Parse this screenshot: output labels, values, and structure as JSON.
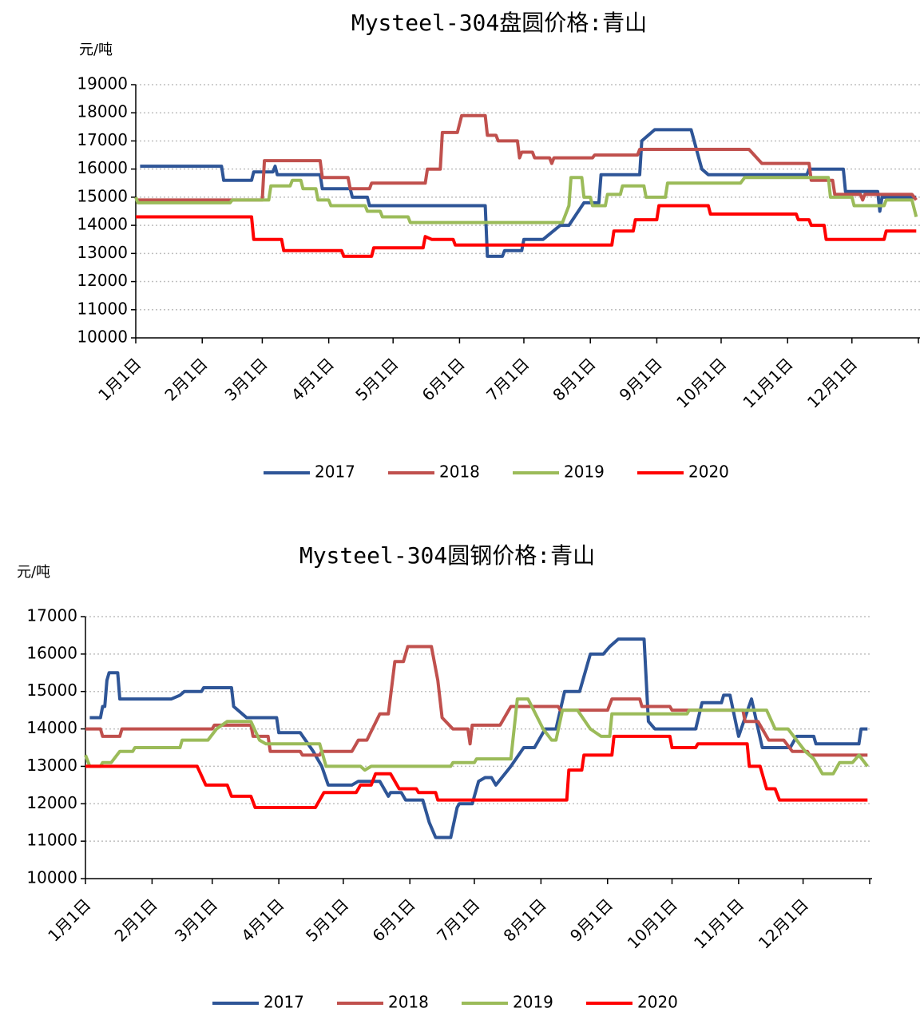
{
  "chart_data": [
    {
      "type": "line",
      "title": "Mysteel-304盘圆价格:青山",
      "y_label": "元/吨",
      "grid": true,
      "legend": "bottom",
      "xlim": [
        "01-01",
        "12-31"
      ],
      "xticks": [
        {
          "value": "01-01",
          "label": "1月1日"
        },
        {
          "value": "02-01",
          "label": "2月1日"
        },
        {
          "value": "03-01",
          "label": "3月1日"
        },
        {
          "value": "04-01",
          "label": "4月1日"
        },
        {
          "value": "05-01",
          "label": "5月1日"
        },
        {
          "value": "06-01",
          "label": "6月1日"
        },
        {
          "value": "07-01",
          "label": "7月1日"
        },
        {
          "value": "08-01",
          "label": "8月1日"
        },
        {
          "value": "09-01",
          "label": "9月1日"
        },
        {
          "value": "10-01",
          "label": "10月1日"
        },
        {
          "value": "11-01",
          "label": "11月1日"
        },
        {
          "value": "12-01",
          "label": "12月1日"
        }
      ],
      "ylim": [
        10000,
        19000
      ],
      "yticks": [
        10000,
        11000,
        12000,
        13000,
        14000,
        15000,
        16000,
        17000,
        18000,
        19000
      ],
      "series": [
        {
          "name": "2017",
          "color": "#2e5597",
          "x": [
            "01-03",
            "02-10",
            "02-11",
            "02-24",
            "02-25",
            "03-06",
            "03-07",
            "03-08",
            "03-28",
            "03-29",
            "04-11",
            "04-12",
            "04-19",
            "04-20",
            "06-13",
            "06-14",
            "06-21",
            "06-22",
            "06-30",
            "07-01",
            "07-10",
            "07-18",
            "07-22",
            "07-29",
            "08-05",
            "08-06",
            "08-24",
            "08-25",
            "08-31",
            "09-17",
            "09-22",
            "09-25",
            "11-10",
            "11-11",
            "11-27",
            "11-28",
            "12-13",
            "12-14",
            "12-15",
            "12-31"
          ],
          "values": [
            16100,
            16100,
            15600,
            15600,
            15900,
            15900,
            16100,
            15800,
            15800,
            15300,
            15300,
            15000,
            15000,
            14700,
            14700,
            12900,
            12900,
            13100,
            13100,
            13500,
            13500,
            14000,
            14000,
            14800,
            14800,
            15800,
            15800,
            17000,
            17400,
            17400,
            16000,
            15800,
            15800,
            16000,
            16000,
            15200,
            15200,
            14500,
            15000,
            15000
          ]
        },
        {
          "name": "2018",
          "color": "#c0504d",
          "x": [
            "01-02",
            "03-01",
            "03-02",
            "03-28",
            "03-29",
            "04-10",
            "04-11",
            "04-20",
            "04-21",
            "05-16",
            "05-17",
            "05-23",
            "05-24",
            "05-31",
            "06-02",
            "06-13",
            "06-14",
            "06-18",
            "06-19",
            "06-28",
            "06-29",
            "06-30",
            "07-05",
            "07-06",
            "07-13",
            "07-14",
            "07-15",
            "08-02",
            "08-03",
            "08-23",
            "08-24",
            "10-14",
            "10-20",
            "11-11",
            "11-12",
            "11-22",
            "11-23",
            "12-05",
            "12-06",
            "12-07",
            "12-29",
            "12-31"
          ],
          "values": [
            14900,
            14900,
            16300,
            16300,
            15700,
            15700,
            15300,
            15300,
            15500,
            15500,
            16000,
            16000,
            17300,
            17300,
            17900,
            17900,
            17200,
            17200,
            17000,
            17000,
            16400,
            16600,
            16600,
            16400,
            16400,
            16200,
            16400,
            16400,
            16500,
            16500,
            16700,
            16700,
            16200,
            16200,
            15600,
            15600,
            15100,
            15100,
            14900,
            15100,
            15100,
            14900
          ]
        },
        {
          "name": "2019",
          "color": "#9bbb59",
          "x": [
            "01-01",
            "01-02",
            "02-14",
            "02-15",
            "03-04",
            "03-05",
            "03-14",
            "03-15",
            "03-19",
            "03-20",
            "03-26",
            "03-27",
            "04-01",
            "04-02",
            "04-18",
            "04-19",
            "04-25",
            "04-26",
            "05-08",
            "05-09",
            "07-19",
            "07-22",
            "07-23",
            "07-28",
            "07-29",
            "08-01",
            "08-02",
            "08-08",
            "08-09",
            "08-15",
            "08-16",
            "08-26",
            "08-27",
            "09-05",
            "09-06",
            "10-10",
            "10-12",
            "11-20",
            "11-21",
            "12-01",
            "12-02",
            "12-16",
            "12-17",
            "12-29",
            "12-31"
          ],
          "values": [
            15000,
            14800,
            14800,
            14900,
            14900,
            15400,
            15400,
            15600,
            15600,
            15300,
            15300,
            14900,
            14900,
            14700,
            14700,
            14500,
            14500,
            14300,
            14300,
            14100,
            14100,
            14700,
            15700,
            15700,
            15000,
            15000,
            14700,
            14700,
            15100,
            15100,
            15400,
            15400,
            15000,
            15000,
            15500,
            15500,
            15700,
            15700,
            15000,
            15000,
            14700,
            14700,
            14900,
            14900,
            14300
          ]
        },
        {
          "name": "2020",
          "color": "#ff0000",
          "x": [
            "01-01",
            "02-24",
            "02-25",
            "03-10",
            "03-11",
            "04-07",
            "04-08",
            "04-21",
            "04-22",
            "05-15",
            "05-16",
            "05-19",
            "05-29",
            "05-30",
            "08-11",
            "08-12",
            "08-21",
            "08-22",
            "09-01",
            "09-02",
            "09-25",
            "09-26",
            "11-05",
            "11-06",
            "11-11",
            "11-12",
            "11-18",
            "11-19",
            "12-16",
            "12-17",
            "12-31"
          ],
          "values": [
            14300,
            14300,
            13500,
            13500,
            13100,
            13100,
            12900,
            12900,
            13200,
            13200,
            13600,
            13500,
            13500,
            13300,
            13300,
            13800,
            13800,
            14200,
            14200,
            14700,
            14700,
            14400,
            14400,
            14200,
            14200,
            14000,
            14000,
            13500,
            13500,
            13800,
            13800
          ]
        }
      ]
    },
    {
      "type": "line",
      "title": "Mysteel-304圆钢价格:青山",
      "y_label": "元/吨",
      "grid": true,
      "legend": "bottom",
      "xlim": [
        "01-01",
        "12-31"
      ],
      "xticks": [
        {
          "value": "01-01",
          "label": "1月1日"
        },
        {
          "value": "02-01",
          "label": "2月1日"
        },
        {
          "value": "03-01",
          "label": "3月1日"
        },
        {
          "value": "04-01",
          "label": "4月1日"
        },
        {
          "value": "05-01",
          "label": "5月1日"
        },
        {
          "value": "06-01",
          "label": "6月1日"
        },
        {
          "value": "07-01",
          "label": "7月1日"
        },
        {
          "value": "08-01",
          "label": "8月1日"
        },
        {
          "value": "09-01",
          "label": "9月1日"
        },
        {
          "value": "10-01",
          "label": "10月1日"
        },
        {
          "value": "11-01",
          "label": "11月1日"
        },
        {
          "value": "12-01",
          "label": "12月1日"
        }
      ],
      "ylim": [
        10000,
        17000
      ],
      "yticks": [
        10000,
        11000,
        12000,
        13000,
        14000,
        15000,
        16000,
        17000
      ],
      "series": [
        {
          "name": "2017",
          "color": "#2e5597",
          "x": [
            "01-03",
            "01-08",
            "01-09",
            "01-10",
            "01-11",
            "01-12",
            "01-16",
            "01-17",
            "02-10",
            "02-14",
            "02-16",
            "02-24",
            "02-25",
            "03-10",
            "03-11",
            "03-17",
            "03-31",
            "04-01",
            "04-11",
            "04-17",
            "04-21",
            "04-24",
            "05-05",
            "05-08",
            "05-18",
            "05-22",
            "05-23",
            "05-28",
            "05-30",
            "06-07",
            "06-10",
            "06-13",
            "06-20",
            "06-23",
            "06-24",
            "06-30",
            "07-03",
            "07-06",
            "07-09",
            "07-11",
            "07-18",
            "07-24",
            "07-29",
            "08-03",
            "08-08",
            "08-12",
            "08-19",
            "08-24",
            "08-30",
            "09-02",
            "09-06",
            "09-18",
            "09-20",
            "09-23",
            "10-12",
            "10-15",
            "10-24",
            "10-25",
            "10-28",
            "11-01",
            "11-07",
            "11-12",
            "11-25",
            "11-28",
            "12-06",
            "12-07",
            "12-27",
            "12-28",
            "12-31"
          ],
          "values": [
            14300,
            14300,
            14600,
            14600,
            15300,
            15500,
            15500,
            14800,
            14800,
            14900,
            15000,
            15000,
            15100,
            15100,
            14600,
            14300,
            14300,
            13900,
            13900,
            13400,
            13000,
            12500,
            12500,
            12600,
            12600,
            12200,
            12300,
            12300,
            12100,
            12100,
            11500,
            11100,
            11100,
            11900,
            12000,
            12000,
            12600,
            12700,
            12700,
            12500,
            13000,
            13500,
            13500,
            14000,
            14000,
            15000,
            15000,
            16000,
            16000,
            16200,
            16400,
            16400,
            14200,
            14000,
            14000,
            14700,
            14700,
            14900,
            14900,
            13800,
            14800,
            13500,
            13500,
            13800,
            13800,
            13600,
            13600,
            14000,
            14000
          ]
        },
        {
          "name": "2018",
          "color": "#c0504d",
          "x": [
            "01-01",
            "01-08",
            "01-09",
            "01-17",
            "01-18",
            "03-01",
            "03-02",
            "03-19",
            "03-20",
            "03-27",
            "03-28",
            "04-11",
            "04-12",
            "04-20",
            "04-21",
            "05-05",
            "05-08",
            "05-12",
            "05-18",
            "05-22",
            "05-25",
            "05-29",
            "05-31",
            "06-11",
            "06-14",
            "06-16",
            "06-21",
            "06-28",
            "06-29",
            "06-30",
            "07-13",
            "07-18",
            "08-09",
            "08-10",
            "09-01",
            "09-03",
            "09-16",
            "09-17",
            "09-30",
            "10-01",
            "11-03",
            "11-04",
            "11-10",
            "11-15",
            "11-22",
            "11-26",
            "12-03",
            "12-04",
            "12-31"
          ],
          "values": [
            14000,
            14000,
            13800,
            13800,
            14000,
            14000,
            14100,
            14100,
            13800,
            13800,
            13400,
            13400,
            13300,
            13300,
            13400,
            13400,
            13700,
            13700,
            14400,
            14400,
            15800,
            15800,
            16200,
            16200,
            15300,
            14300,
            14000,
            14000,
            13600,
            14100,
            14100,
            14600,
            14600,
            14500,
            14500,
            14800,
            14800,
            14600,
            14600,
            14500,
            14500,
            14200,
            14200,
            13700,
            13700,
            13400,
            13400,
            13300,
            13300
          ]
        },
        {
          "name": "2019",
          "color": "#9bbb59",
          "x": [
            "01-01",
            "01-03",
            "01-08",
            "01-09",
            "01-13",
            "01-17",
            "01-23",
            "01-24",
            "02-14",
            "02-15",
            "02-27",
            "03-03",
            "03-08",
            "03-19",
            "03-23",
            "03-26",
            "04-20",
            "04-23",
            "05-09",
            "05-11",
            "05-14",
            "06-20",
            "06-21",
            "07-01",
            "07-02",
            "07-18",
            "07-21",
            "07-26",
            "08-02",
            "08-06",
            "08-08",
            "08-11",
            "08-18",
            "08-24",
            "08-29",
            "09-02",
            "09-03",
            "10-08",
            "10-09",
            "11-14",
            "11-18",
            "11-24",
            "12-02",
            "12-06",
            "12-10",
            "12-15",
            "12-18",
            "12-24",
            "12-27",
            "12-31"
          ],
          "values": [
            13300,
            13000,
            13000,
            13100,
            13100,
            13400,
            13400,
            13500,
            13500,
            13700,
            13700,
            14000,
            14200,
            14200,
            13700,
            13600,
            13600,
            13000,
            13000,
            12900,
            13000,
            13000,
            13100,
            13100,
            13200,
            13200,
            14800,
            14800,
            14000,
            13700,
            13700,
            14500,
            14500,
            14000,
            13800,
            13800,
            14400,
            14400,
            14500,
            14500,
            14000,
            14000,
            13400,
            13200,
            12800,
            12800,
            13100,
            13100,
            13300,
            13000
          ]
        },
        {
          "name": "2020",
          "color": "#ff0000",
          "x": [
            "01-01",
            "02-22",
            "02-26",
            "03-08",
            "03-10",
            "03-19",
            "03-21",
            "04-18",
            "04-22",
            "05-07",
            "05-09",
            "05-14",
            "05-16",
            "05-23",
            "05-27",
            "06-04",
            "06-05",
            "06-13",
            "06-14",
            "08-13",
            "08-14",
            "08-20",
            "08-21",
            "09-03",
            "09-04",
            "09-30",
            "10-01",
            "10-12",
            "10-13",
            "11-05",
            "11-06",
            "11-11",
            "11-14",
            "11-18",
            "11-20",
            "12-31"
          ],
          "values": [
            13000,
            13000,
            12500,
            12500,
            12200,
            12200,
            11900,
            11900,
            12300,
            12300,
            12500,
            12500,
            12800,
            12800,
            12400,
            12400,
            12300,
            12300,
            12100,
            12100,
            12900,
            12900,
            13300,
            13300,
            13800,
            13800,
            13500,
            13500,
            13600,
            13600,
            13000,
            13000,
            12400,
            12400,
            12100,
            12100
          ]
        }
      ]
    }
  ]
}
